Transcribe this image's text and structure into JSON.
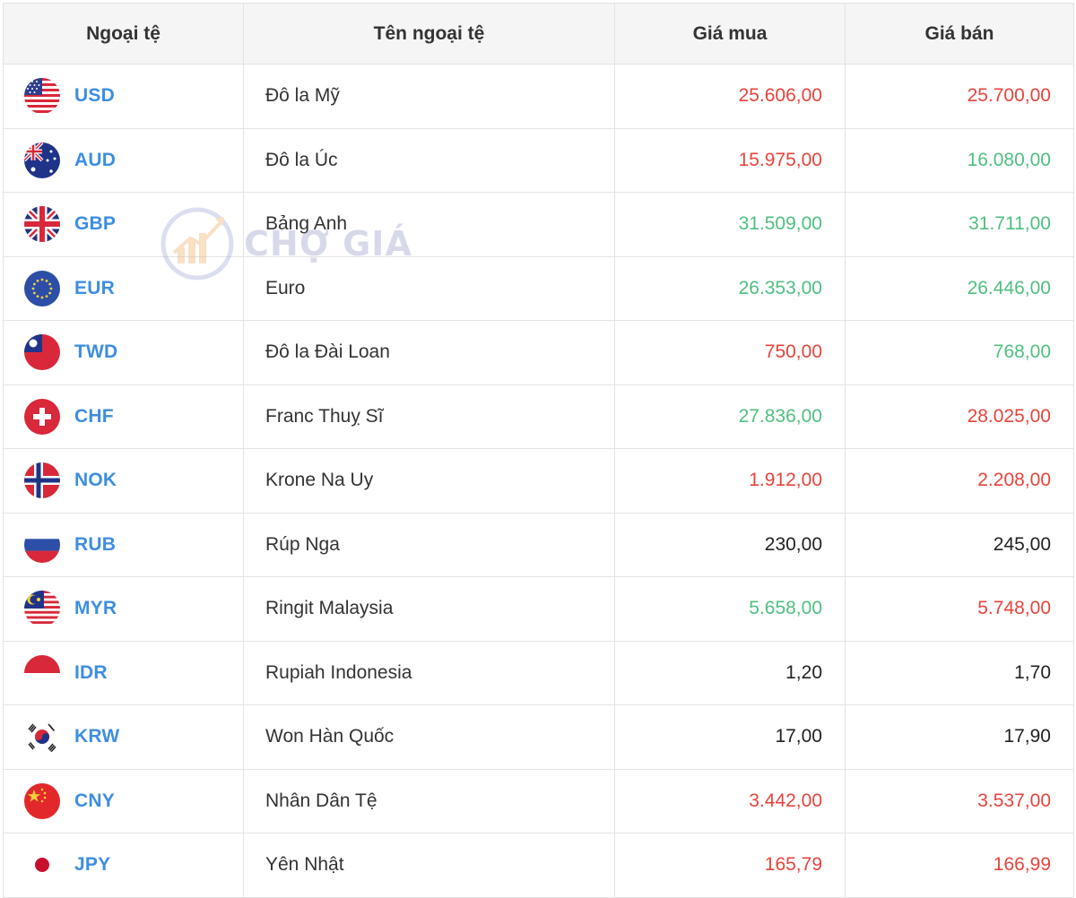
{
  "header": {
    "code": "Ngoại tệ",
    "name": "Tên ngoại tệ",
    "buy": "Giá mua",
    "sell": "Giá bán"
  },
  "watermark": {
    "text": "CHỢ GIÁ"
  },
  "colors": {
    "up": "#4fbf7f",
    "down": "#e8433b",
    "neutral": "#222222",
    "code": "#3d8ee0"
  },
  "rows": [
    {
      "code": "USD",
      "name": "Đô la Mỹ",
      "buy": "25.606,00",
      "buy_trend": "down",
      "sell": "25.700,00",
      "sell_trend": "down",
      "flag": "us-flag-icon"
    },
    {
      "code": "AUD",
      "name": "Đô la Úc",
      "buy": "15.975,00",
      "buy_trend": "down",
      "sell": "16.080,00",
      "sell_trend": "up",
      "flag": "au-flag-icon"
    },
    {
      "code": "GBP",
      "name": "Bảng Anh",
      "buy": "31.509,00",
      "buy_trend": "up",
      "sell": "31.711,00",
      "sell_trend": "up",
      "flag": "gb-flag-icon"
    },
    {
      "code": "EUR",
      "name": "Euro",
      "buy": "26.353,00",
      "buy_trend": "up",
      "sell": "26.446,00",
      "sell_trend": "up",
      "flag": "eu-flag-icon"
    },
    {
      "code": "TWD",
      "name": "Đô la Đài Loan",
      "buy": "750,00",
      "buy_trend": "down",
      "sell": "768,00",
      "sell_trend": "up",
      "flag": "tw-flag-icon"
    },
    {
      "code": "CHF",
      "name": "Franc Thuỵ Sĩ",
      "buy": "27.836,00",
      "buy_trend": "up",
      "sell": "28.025,00",
      "sell_trend": "down",
      "flag": "ch-flag-icon"
    },
    {
      "code": "NOK",
      "name": "Krone Na Uy",
      "buy": "1.912,00",
      "buy_trend": "down",
      "sell": "2.208,00",
      "sell_trend": "down",
      "flag": "no-flag-icon"
    },
    {
      "code": "RUB",
      "name": "Rúp Nga",
      "buy": "230,00",
      "buy_trend": "neutral",
      "sell": "245,00",
      "sell_trend": "neutral",
      "flag": "ru-flag-icon"
    },
    {
      "code": "MYR",
      "name": "Ringit Malaysia",
      "buy": "5.658,00",
      "buy_trend": "up",
      "sell": "5.748,00",
      "sell_trend": "down",
      "flag": "my-flag-icon"
    },
    {
      "code": "IDR",
      "name": "Rupiah Indonesia",
      "buy": "1,20",
      "buy_trend": "neutral",
      "sell": "1,70",
      "sell_trend": "neutral",
      "flag": "id-flag-icon"
    },
    {
      "code": "KRW",
      "name": "Won Hàn Quốc",
      "buy": "17,00",
      "buy_trend": "neutral",
      "sell": "17,90",
      "sell_trend": "neutral",
      "flag": "kr-flag-icon"
    },
    {
      "code": "CNY",
      "name": "Nhân Dân Tệ",
      "buy": "3.442,00",
      "buy_trend": "down",
      "sell": "3.537,00",
      "sell_trend": "down",
      "flag": "cn-flag-icon"
    },
    {
      "code": "JPY",
      "name": "Yên Nhật",
      "buy": "165,79",
      "buy_trend": "down",
      "sell": "166,99",
      "sell_trend": "down",
      "flag": "jp-flag-icon"
    }
  ]
}
